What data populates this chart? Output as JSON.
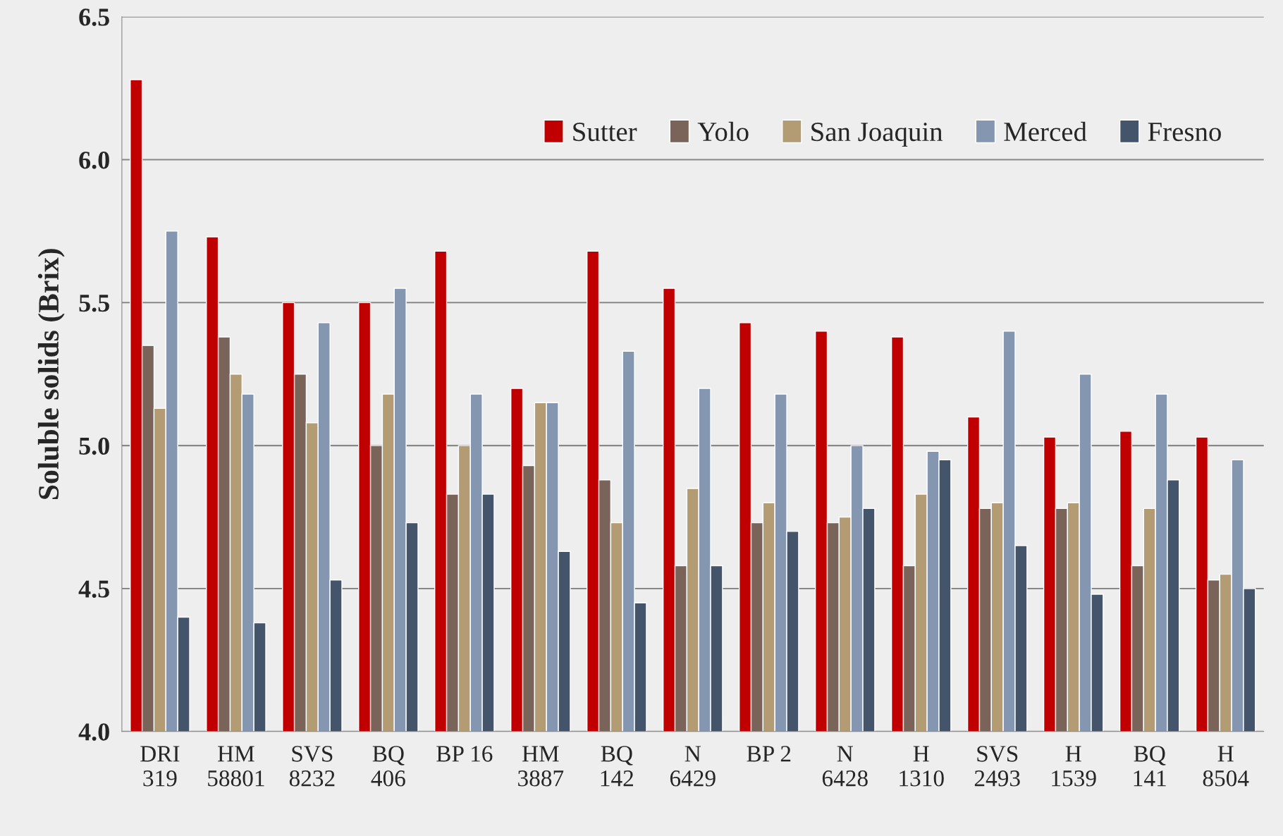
{
  "chart_data": {
    "type": "bar",
    "ylabel": "Soluble solids (Brix)",
    "categories": [
      "DRI\n319",
      "HM\n58801",
      "SVS\n8232",
      "BQ\n406",
      "BP 16",
      "HM\n3887",
      "BQ\n142",
      "N\n6429",
      "BP 2",
      "N\n6428",
      "H\n1310",
      "SVS\n2493",
      "H\n1539",
      "BQ\n141",
      "H\n8504"
    ],
    "series": [
      {
        "name": "Sutter",
        "color": "#c00000",
        "values": [
          6.28,
          5.73,
          5.5,
          5.5,
          5.68,
          5.2,
          5.68,
          5.55,
          5.43,
          5.4,
          5.38,
          5.1,
          5.03,
          5.05,
          5.03
        ]
      },
      {
        "name": "Yolo",
        "color": "#7a6358",
        "values": [
          5.35,
          5.38,
          5.25,
          5.0,
          4.83,
          4.93,
          4.88,
          4.58,
          4.73,
          4.73,
          4.58,
          4.78,
          4.78,
          4.58,
          4.53
        ]
      },
      {
        "name": "San Joaquin",
        "color": "#b39b74",
        "values": [
          5.13,
          5.25,
          5.08,
          5.18,
          5.0,
          5.15,
          4.73,
          4.85,
          4.8,
          4.75,
          4.83,
          4.8,
          4.8,
          4.78,
          4.55
        ]
      },
      {
        "name": "Merced",
        "color": "#8496b0",
        "values": [
          5.75,
          5.18,
          5.43,
          5.55,
          5.18,
          5.15,
          5.33,
          5.2,
          5.18,
          5.0,
          4.98,
          5.4,
          5.25,
          5.18,
          4.95
        ]
      },
      {
        "name": "Fresno",
        "color": "#44546a",
        "values": [
          4.4,
          4.38,
          4.53,
          4.73,
          4.83,
          4.63,
          4.45,
          4.58,
          4.7,
          4.78,
          4.95,
          4.65,
          4.48,
          4.88,
          4.5
        ]
      }
    ],
    "ylim": [
      4.0,
      6.5
    ],
    "yticks": [
      {
        "value": 4.0,
        "label": "4.0"
      },
      {
        "value": 4.5,
        "label": "4.5"
      },
      {
        "value": 5.0,
        "label": "5.0"
      },
      {
        "value": 5.5,
        "label": "5.5"
      },
      {
        "value": 6.0,
        "label": "6.0"
      },
      {
        "value": 6.5,
        "label": "6.5"
      }
    ],
    "grid": "y",
    "legend": "top right"
  }
}
